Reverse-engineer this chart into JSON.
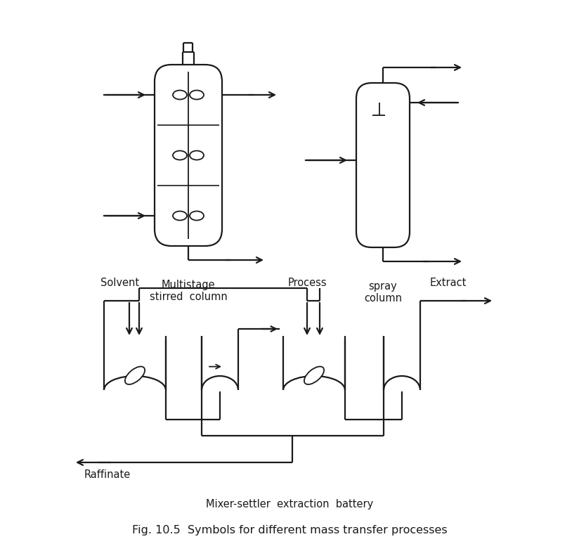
{
  "title": "Fig. 10.5  Symbols for different mass transfer processes",
  "label1": "Multistage\nstirred  column",
  "label2": "spray\ncolumn",
  "label3": "Mixer-settler  extraction  battery",
  "label_solvent": "Solvent",
  "label_process": "Process",
  "label_extract": "Extract",
  "label_raffinate": "Raffinate",
  "line_color": "#1a1a1a",
  "bg_color": "#ffffff"
}
